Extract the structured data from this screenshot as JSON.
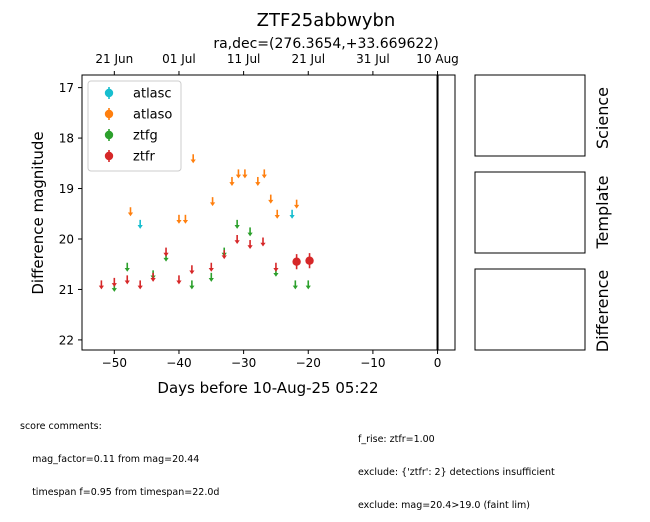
{
  "chart_data": {
    "type": "scatter",
    "title": "ZTF25abbwybn",
    "subtitle": "ra,dec=(276.3654,+33.669622)",
    "xlabel": "Days before 10-Aug-25 05:22",
    "ylabel": "Difference magnitude",
    "xlim": [
      -55,
      2.7
    ],
    "ylim": [
      22.2,
      16.75
    ],
    "y_inverted": true,
    "x_ticks": [
      -50,
      -40,
      -30,
      -20,
      -10,
      0
    ],
    "y_ticks": [
      17,
      18,
      19,
      20,
      21,
      22
    ],
    "top_axis_ticks": [
      {
        "label": "21 Jun",
        "x": -50
      },
      {
        "label": "01 Jul",
        "x": -40
      },
      {
        "label": "11 Jul",
        "x": -30
      },
      {
        "label": "21 Jul",
        "x": -20
      },
      {
        "label": "31 Jul",
        "x": -10
      },
      {
        "label": "10 Aug",
        "x": 0
      }
    ],
    "vline_x": 0,
    "legend_position": "top-left",
    "series": [
      {
        "name": "atlasc",
        "color": "#17becf",
        "kind": "upper_limit",
        "points": [
          [
            -46,
            19.7
          ],
          [
            -22.5,
            19.5
          ]
        ]
      },
      {
        "name": "atlaso",
        "color": "#ff7f0e",
        "kind": "upper_limit",
        "points": [
          [
            -47.5,
            19.45
          ],
          [
            -40,
            19.6
          ],
          [
            -39,
            19.6
          ],
          [
            -37.8,
            18.4
          ],
          [
            -34.8,
            19.25
          ],
          [
            -31.8,
            18.85
          ],
          [
            -30.8,
            18.7
          ],
          [
            -29.8,
            18.7
          ],
          [
            -27.8,
            18.85
          ],
          [
            -26.8,
            18.7
          ],
          [
            -25.8,
            19.2
          ],
          [
            -24.8,
            19.5
          ],
          [
            -21.8,
            19.3
          ]
        ]
      },
      {
        "name": "ztfg",
        "color": "#2ca02c",
        "kind": "upper_limit",
        "points": [
          [
            -50,
            20.95
          ],
          [
            -48,
            20.55
          ],
          [
            -44,
            20.7
          ],
          [
            -42,
            20.35
          ],
          [
            -38,
            20.9
          ],
          [
            -35,
            20.75
          ],
          [
            -33,
            20.25
          ],
          [
            -31,
            19.7
          ],
          [
            -29,
            19.85
          ],
          [
            -25,
            20.65
          ],
          [
            -22,
            20.9
          ],
          [
            -20,
            20.9
          ]
        ]
      },
      {
        "name": "ztfr",
        "color": "#d62728",
        "kind": "upper_limit",
        "points": [
          [
            -52,
            20.9
          ],
          [
            -50,
            20.85
          ],
          [
            -48,
            20.8
          ],
          [
            -46,
            20.9
          ],
          [
            -44,
            20.75
          ],
          [
            -42,
            20.25
          ],
          [
            -40,
            20.8
          ],
          [
            -38,
            20.6
          ],
          [
            -35,
            20.55
          ],
          [
            -33,
            20.3
          ],
          [
            -31,
            20.0
          ],
          [
            -29,
            20.1
          ],
          [
            -27,
            20.05
          ],
          [
            -25,
            20.55
          ]
        ]
      },
      {
        "name": "ztfr",
        "color": "#d62728",
        "kind": "detection",
        "points": [
          [
            -21.8,
            20.45,
            0.15
          ],
          [
            -19.8,
            20.43,
            0.15
          ]
        ]
      }
    ],
    "side_panels": [
      "Science",
      "Template",
      "Difference"
    ]
  },
  "notes": {
    "left": [
      "score comments:",
      "    mag_factor=0.11 from mag=20.44",
      "    timespan f=0.95 from timespan=22.0d"
    ],
    "right": [
      "f_rise: ztfr=1.00",
      "exclude: {'ztfr': 2} detections insufficient",
      "exclude: mag=20.4>19.0 (faint lim)"
    ]
  }
}
